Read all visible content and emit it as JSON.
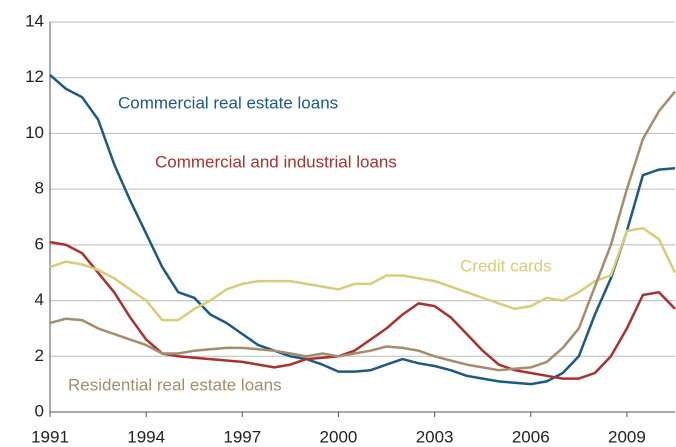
{
  "chart_data": {
    "type": "line",
    "x": [
      1991,
      1991.5,
      1992,
      1992.5,
      1993,
      1993.5,
      1994,
      1994.5,
      1995,
      1995.5,
      1996,
      1996.5,
      1997,
      1997.5,
      1998,
      1998.5,
      1999,
      1999.5,
      2000,
      2000.5,
      2001,
      2001.5,
      2002,
      2002.5,
      2003,
      2003.5,
      2004,
      2004.5,
      2005,
      2005.5,
      2006,
      2006.5,
      2007,
      2007.5,
      2008,
      2008.5,
      2009,
      2009.5,
      2010,
      2010.5
    ],
    "series": [
      {
        "name": "Commercial real estate loans",
        "color": "#1b5a84",
        "values": [
          12.1,
          11.6,
          11.3,
          10.5,
          8.9,
          7.6,
          6.4,
          5.2,
          4.3,
          4.1,
          3.5,
          3.2,
          2.8,
          2.4,
          2.2,
          2.0,
          1.9,
          1.7,
          1.45,
          1.45,
          1.5,
          1.7,
          1.9,
          1.75,
          1.65,
          1.5,
          1.3,
          1.2,
          1.1,
          1.05,
          1.0,
          1.1,
          1.4,
          2.0,
          3.5,
          4.8,
          6.5,
          8.5,
          8.7,
          8.75
        ]
      },
      {
        "name": "Commercial and industrial loans",
        "color": "#a8322f",
        "values": [
          6.1,
          6.0,
          5.7,
          5.0,
          4.3,
          3.4,
          2.6,
          2.1,
          2.0,
          1.95,
          1.9,
          1.85,
          1.8,
          1.7,
          1.6,
          1.7,
          1.9,
          1.95,
          2.0,
          2.2,
          2.6,
          3.0,
          3.5,
          3.9,
          3.8,
          3.4,
          2.8,
          2.2,
          1.7,
          1.5,
          1.4,
          1.3,
          1.2,
          1.2,
          1.4,
          2.0,
          3.0,
          4.2,
          4.3,
          3.7
        ]
      },
      {
        "name": "Credit cards",
        "color": "#d8cd78",
        "values": [
          5.2,
          5.4,
          5.3,
          5.1,
          4.8,
          4.4,
          4.0,
          3.3,
          3.3,
          3.7,
          4.0,
          4.4,
          4.6,
          4.7,
          4.7,
          4.7,
          4.6,
          4.5,
          4.4,
          4.6,
          4.6,
          4.9,
          4.9,
          4.8,
          4.7,
          4.5,
          4.3,
          4.1,
          3.9,
          3.7,
          3.8,
          4.1,
          4.0,
          4.3,
          4.7,
          4.9,
          6.5,
          6.6,
          6.2,
          5.0
        ]
      },
      {
        "name": "Residential real estate loans",
        "color": "#a58c6f",
        "values": [
          3.2,
          3.35,
          3.3,
          3.0,
          2.8,
          2.6,
          2.4,
          2.1,
          2.1,
          2.2,
          2.25,
          2.3,
          2.3,
          2.25,
          2.2,
          2.1,
          2.0,
          2.1,
          2.0,
          2.1,
          2.2,
          2.35,
          2.3,
          2.2,
          2.0,
          1.85,
          1.7,
          1.6,
          1.5,
          1.55,
          1.6,
          1.8,
          2.3,
          3.0,
          4.5,
          6.0,
          8.0,
          9.8,
          10.8,
          11.5
        ]
      }
    ],
    "xlim": [
      1991,
      2010.5
    ],
    "ylim": [
      0,
      14
    ],
    "xticks": [
      1991,
      1994,
      1997,
      2000,
      2003,
      2006,
      2009
    ],
    "yticks": [
      0,
      2,
      4,
      6,
      8,
      10,
      12,
      14
    ],
    "grid": true
  }
}
